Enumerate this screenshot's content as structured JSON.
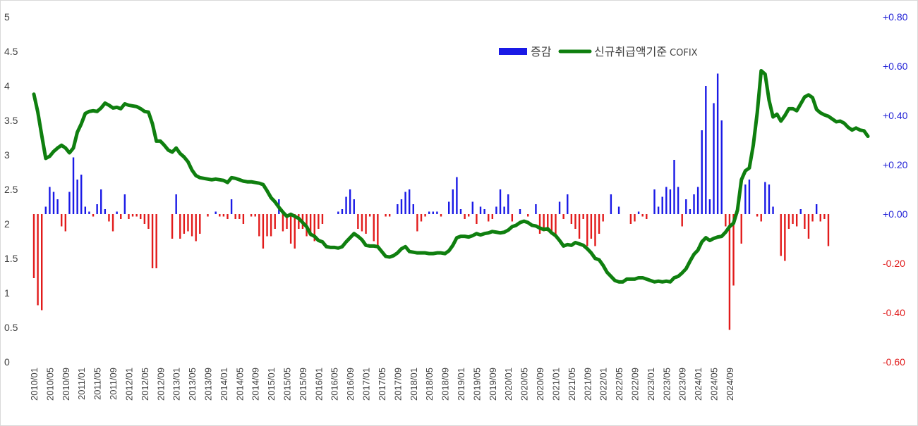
{
  "chart_data": {
    "type": "bar+line",
    "title": "",
    "legend": {
      "position": "top-right",
      "entries": [
        {
          "label": "증감",
          "type": "bar",
          "color": "#1a1ae6"
        },
        {
          "label": "신규취급액기준",
          "label_suffix": "COFIX",
          "type": "line",
          "color": "#0f7f0f"
        }
      ]
    },
    "colors": {
      "bar_positive": "#1a1ae6",
      "bar_negative": "#e21b1b",
      "line": "#0f7f0f"
    },
    "y_left": {
      "min": 0,
      "max": 5,
      "ticks": [
        "0",
        "0.5",
        "1",
        "1.5",
        "2",
        "2.5",
        "3",
        "3.5",
        "4",
        "4.5",
        "5"
      ]
    },
    "y_right": {
      "min": -0.6,
      "max": 0.8,
      "zero": "0.00",
      "ticks": [
        "-0.60",
        "-0.40",
        "-0.20",
        "+0.00",
        "+0.20",
        "+0.40",
        "+0.60",
        "+0.80"
      ]
    },
    "x_tick_labels": [
      "2010/01",
      "2010/05",
      "2010/09",
      "2011/01",
      "2011/05",
      "2011/09",
      "2012/01",
      "2012/05",
      "2012/09",
      "2013/01",
      "2013/05",
      "2013/09",
      "2014/01",
      "2014/05",
      "2014/09",
      "2015/01",
      "2015/05",
      "2015/09",
      "2016/01",
      "2016/05",
      "2016/09",
      "2017/01",
      "2017/05",
      "2017/09",
      "2018/01",
      "2018/05",
      "2018/09",
      "2019/01",
      "2019/05",
      "2019/09",
      "2020/01",
      "2020/05",
      "2020/09",
      "2021/01",
      "2021/05",
      "2021/09",
      "2022/01",
      "2022/05",
      "2022/09",
      "2023/01",
      "2023/05",
      "2023/09",
      "2024/01",
      "2024/05",
      "2024/09"
    ],
    "start_month": "2010/01",
    "cofix": [
      3.88,
      3.62,
      3.28,
      2.95,
      2.98,
      3.05,
      3.1,
      3.14,
      3.1,
      3.03,
      3.1,
      3.33,
      3.45,
      3.6,
      3.63,
      3.64,
      3.63,
      3.68,
      3.75,
      3.72,
      3.68,
      3.69,
      3.67,
      3.74,
      3.72,
      3.71,
      3.7,
      3.67,
      3.63,
      3.62,
      3.45,
      3.2,
      3.2,
      3.14,
      3.07,
      3.04,
      3.1,
      3.02,
      2.97,
      2.9,
      2.78,
      2.7,
      2.67,
      2.66,
      2.65,
      2.64,
      2.65,
      2.64,
      2.63,
      2.6,
      2.67,
      2.66,
      2.64,
      2.62,
      2.61,
      2.61,
      2.6,
      2.59,
      2.57,
      2.48,
      2.38,
      2.32,
      2.24,
      2.17,
      2.11,
      2.14,
      2.11,
      2.08,
      2.02,
      1.96,
      1.85,
      1.82,
      1.76,
      1.74,
      1.67,
      1.66,
      1.66,
      1.65,
      1.67,
      1.74,
      1.8,
      1.86,
      1.82,
      1.77,
      1.69,
      1.68,
      1.68,
      1.67,
      1.6,
      1.53,
      1.52,
      1.54,
      1.58,
      1.64,
      1.67,
      1.6,
      1.59,
      1.58,
      1.58,
      1.58,
      1.57,
      1.57,
      1.58,
      1.58,
      1.57,
      1.61,
      1.69,
      1.8,
      1.82,
      1.82,
      1.81,
      1.83,
      1.86,
      1.84,
      1.86,
      1.87,
      1.89,
      1.88,
      1.87,
      1.88,
      1.91,
      1.96,
      1.98,
      2.02,
      2.04,
      2.02,
      1.98,
      1.97,
      1.94,
      1.92,
      1.93,
      1.87,
      1.83,
      1.76,
      1.68,
      1.7,
      1.69,
      1.73,
      1.71,
      1.69,
      1.64,
      1.58,
      1.5,
      1.48,
      1.4,
      1.3,
      1.24,
      1.18,
      1.16,
      1.16,
      1.2,
      1.2,
      1.2,
      1.22,
      1.22,
      1.2,
      1.18,
      1.16,
      1.17,
      1.16,
      1.17,
      1.16,
      1.22,
      1.24,
      1.29,
      1.35,
      1.46,
      1.56,
      1.62,
      1.74,
      1.8,
      1.76,
      1.79,
      1.81,
      1.82,
      1.88,
      1.96,
      2.01,
      2.2,
      2.64,
      2.77,
      2.81,
      3.14,
      3.61,
      4.22,
      4.17,
      3.79,
      3.55,
      3.59,
      3.49,
      3.57,
      3.67,
      3.67,
      3.64,
      3.74,
      3.84,
      3.87,
      3.83,
      3.66,
      3.61,
      3.58,
      3.56,
      3.52,
      3.48,
      3.49,
      3.46,
      3.4,
      3.36,
      3.39,
      3.36,
      3.35,
      3.27
    ],
    "delta": [
      -0.26,
      -0.37,
      -0.39,
      0.03,
      0.11,
      0.09,
      0.06,
      -0.05,
      -0.07,
      0.09,
      0.23,
      0.14,
      0.16,
      0.03,
      0.01,
      -0.01,
      0.04,
      0.1,
      0.02,
      -0.03,
      -0.07,
      0.01,
      -0.02,
      0.08,
      -0.02,
      -0.01,
      -0.01,
      -0.02,
      -0.04,
      -0.06,
      -0.22,
      -0.22,
      0.0,
      0.0,
      0.0,
      -0.1,
      0.08,
      -0.1,
      -0.08,
      -0.07,
      -0.09,
      -0.11,
      -0.08,
      0.0,
      -0.01,
      0.0,
      0.01,
      -0.01,
      -0.01,
      -0.02,
      0.06,
      -0.02,
      -0.02,
      -0.04,
      0.0,
      -0.01,
      -0.01,
      -0.09,
      -0.14,
      -0.09,
      -0.09,
      -0.06,
      0.06,
      -0.07,
      -0.06,
      -0.12,
      -0.14,
      -0.06,
      -0.06,
      -0.09,
      -0.09,
      -0.11,
      -0.06,
      -0.04,
      0.0,
      0.0,
      0.0,
      0.01,
      0.02,
      0.07,
      0.1,
      0.06,
      -0.06,
      -0.07,
      -0.08,
      -0.01,
      -0.11,
      -0.13,
      0.0,
      -0.01,
      -0.01,
      0.0,
      0.04,
      0.06,
      0.09,
      0.1,
      0.04,
      -0.07,
      -0.03,
      -0.01,
      0.01,
      0.01,
      0.01,
      -0.01,
      0.0,
      0.05,
      0.1,
      0.15,
      0.02,
      -0.02,
      -0.01,
      0.05,
      -0.04,
      0.03,
      0.02,
      -0.03,
      -0.02,
      0.03,
      0.1,
      0.03,
      0.08,
      -0.03,
      0.0,
      0.02,
      0.0,
      -0.01,
      0.0,
      0.04,
      -0.08,
      -0.07,
      -0.07,
      -0.08,
      -0.09,
      0.05,
      -0.02,
      0.08,
      -0.04,
      -0.06,
      -0.1,
      -0.02,
      -0.13,
      -0.1,
      -0.13,
      -0.08,
      -0.03,
      0.0,
      0.08,
      0.0,
      0.03,
      0.0,
      0.0,
      -0.04,
      -0.03,
      0.01,
      -0.01,
      -0.02,
      0.0,
      0.1,
      0.03,
      0.07,
      0.11,
      0.1,
      0.22,
      0.11,
      -0.05,
      0.06,
      0.02,
      0.08,
      0.11,
      0.34,
      0.52,
      0.06,
      0.45,
      0.57,
      0.38,
      -0.05,
      -0.47,
      -0.29,
      0.03,
      -0.12,
      0.12,
      0.14,
      0.0,
      -0.01,
      -0.03,
      0.13,
      0.12,
      0.03,
      0.0,
      -0.17,
      -0.19,
      -0.06,
      -0.04,
      -0.05,
      0.02,
      -0.06,
      -0.1,
      -0.03,
      0.04,
      -0.03,
      -0.02,
      -0.13
    ]
  }
}
